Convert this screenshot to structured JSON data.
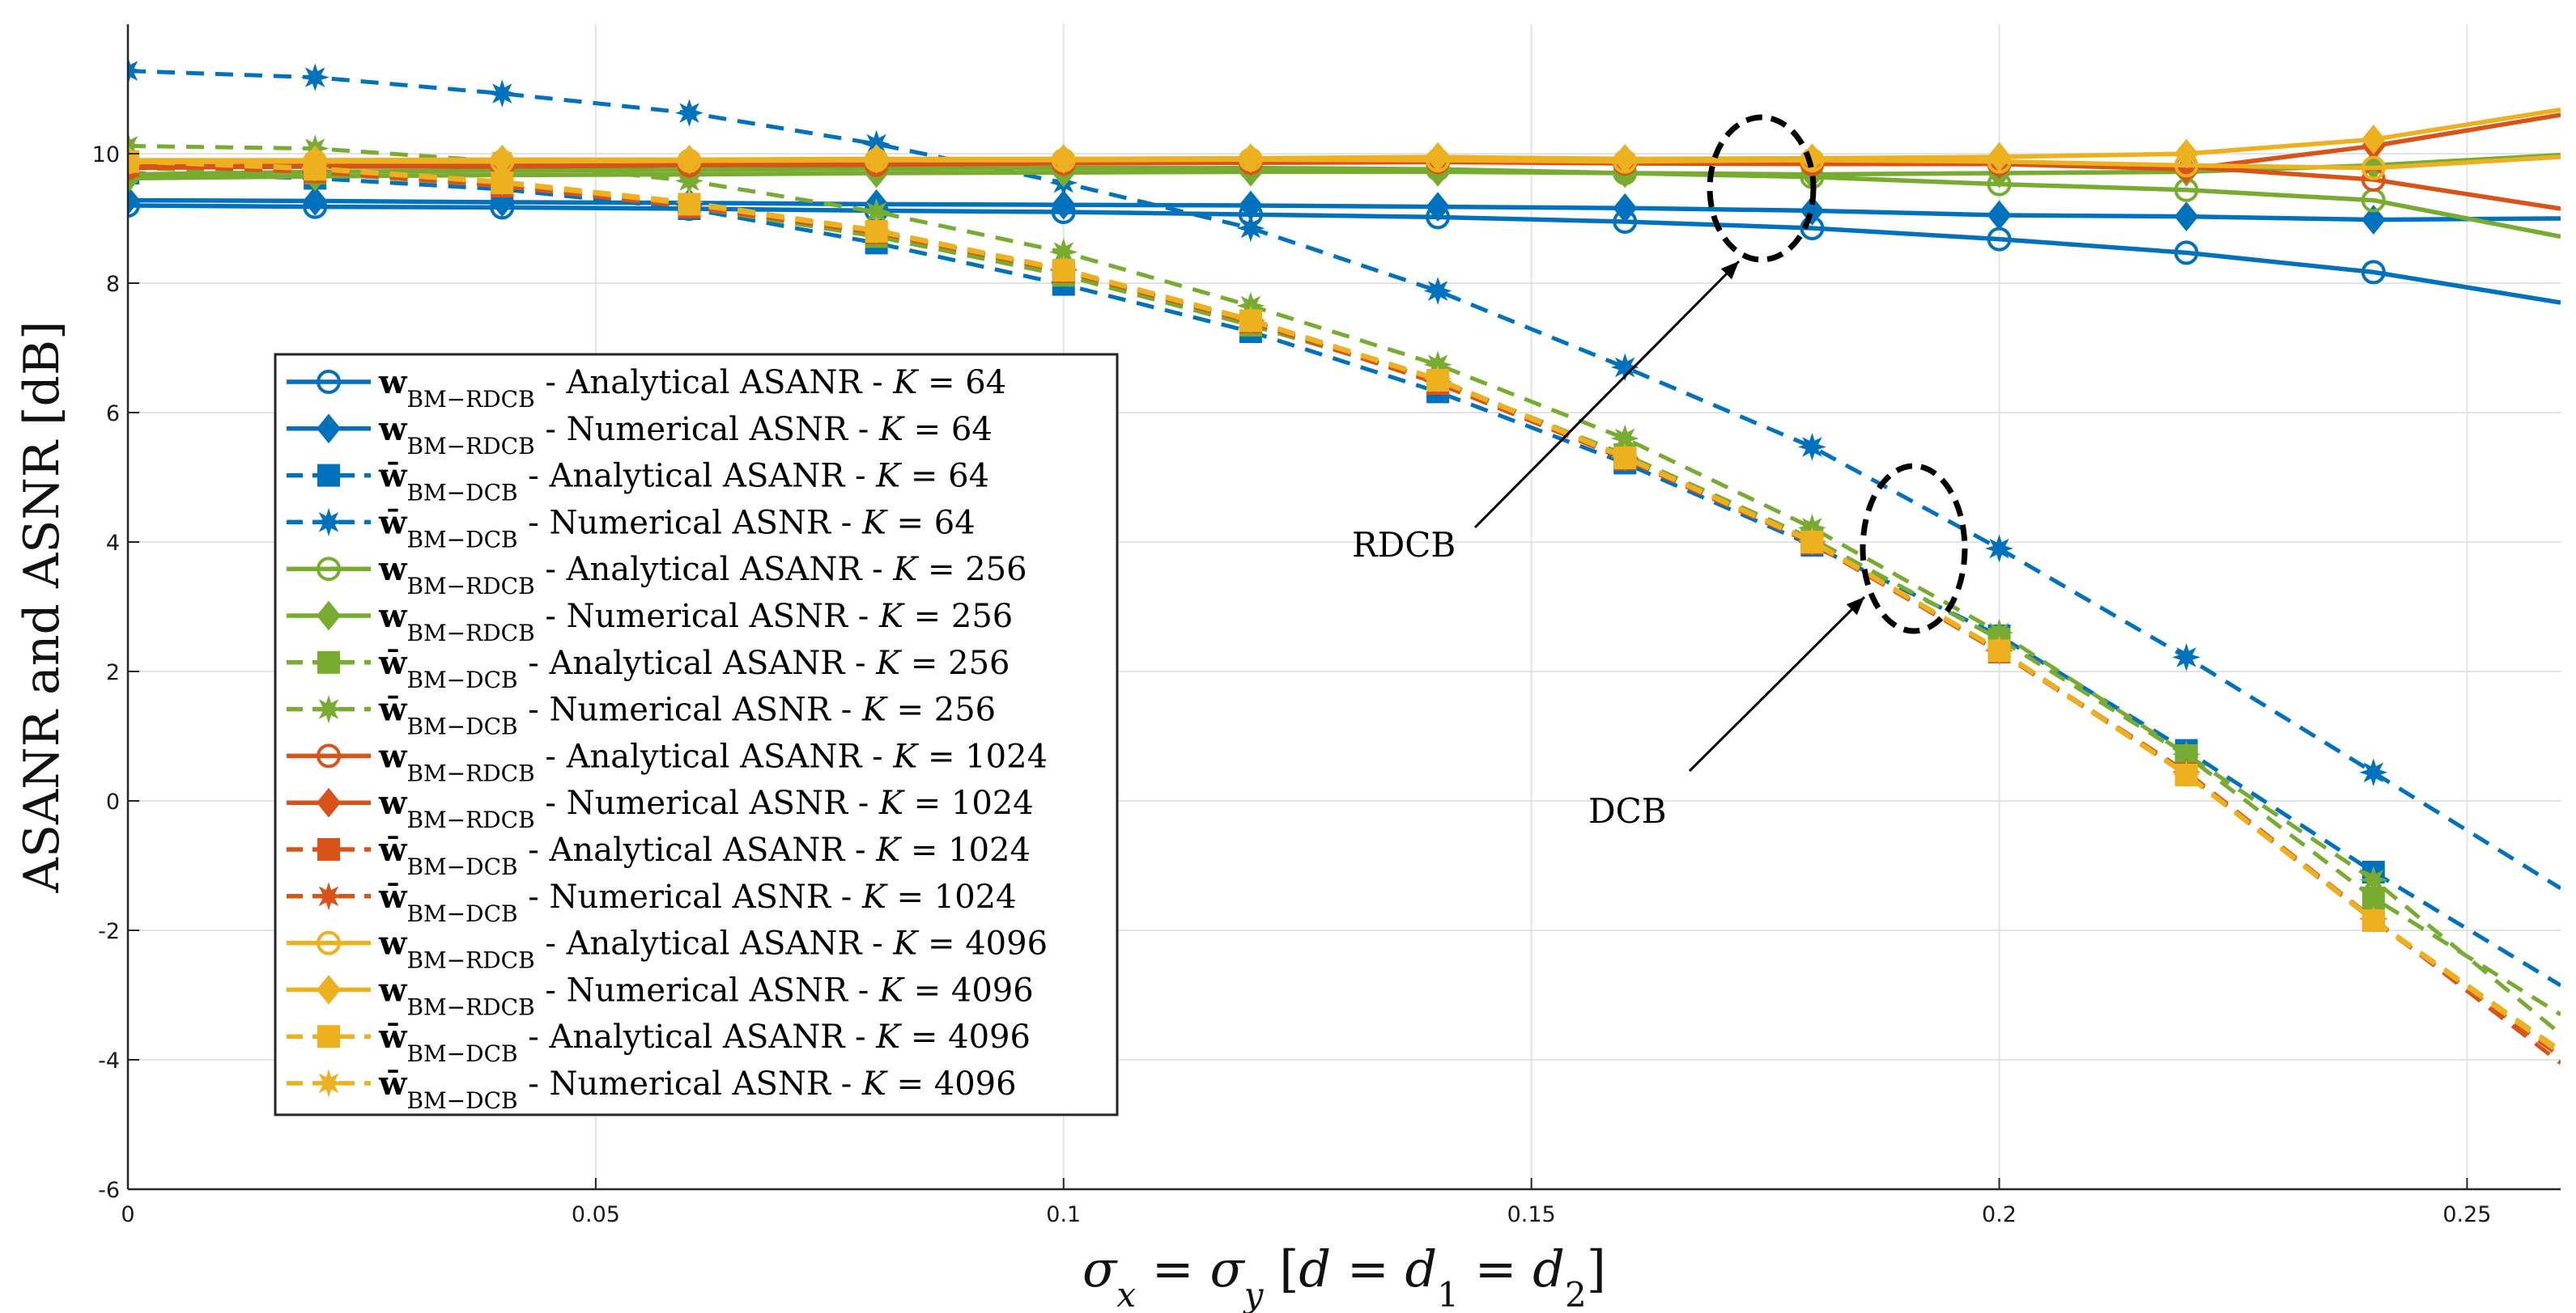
{
  "chart_data": {
    "type": "line",
    "xlabel": "σx = σy [d = d1 = d2]",
    "ylabel": "ASANR and ASNR [dB]",
    "xlim": [
      0,
      0.26
    ],
    "ylim": [
      -6,
      12
    ],
    "xticks": [
      0,
      0.05,
      0.1,
      0.15,
      0.2,
      0.25
    ],
    "xtick_labels": [
      "0",
      "0.05",
      "0.1",
      "0.15",
      "0.2",
      "0.25"
    ],
    "yticks": [
      -6,
      -4,
      -2,
      0,
      2,
      4,
      6,
      8,
      10
    ],
    "ytick_labels": [
      "-6",
      "-4",
      "-2",
      "0",
      "2",
      "4",
      "6",
      "8",
      "10"
    ],
    "grid": true,
    "legend_position": "middle-left",
    "x": [
      0,
      0.02,
      0.04,
      0.06,
      0.08,
      0.1,
      0.12,
      0.14,
      0.16,
      0.18,
      0.2,
      0.22,
      0.24,
      0.26
    ],
    "series": [
      {
        "name": "wBM−RDCB - Analytical ASANR - K = 64",
        "beam": "w",
        "sub": "BM−RDCB",
        "metric": "Analytical ASANR",
        "K": "64",
        "color": "#0072BD",
        "style": "solid",
        "marker": "circle",
        "values": [
          9.2,
          9.18,
          9.17,
          9.15,
          9.12,
          9.1,
          9.06,
          9.02,
          8.95,
          8.85,
          8.68,
          8.47,
          8.17,
          7.7
        ]
      },
      {
        "name": "wBM−RDCB - Numerical ASNR - K = 64",
        "beam": "w",
        "sub": "BM−RDCB",
        "metric": "Numerical ASNR",
        "K": "64",
        "color": "#0072BD",
        "style": "solid",
        "marker": "diamond",
        "values": [
          9.28,
          9.27,
          9.25,
          9.24,
          9.22,
          9.21,
          9.2,
          9.18,
          9.16,
          9.12,
          9.05,
          9.03,
          8.98,
          9.0
        ]
      },
      {
        "name": "w̄BM−DCB - Analytical ASANR - K = 64",
        "beam": "w̄",
        "sub": "BM−DCB",
        "metric": "Analytical ASANR",
        "K": "64",
        "color": "#0072BD",
        "style": "dashed",
        "marker": "square",
        "values": [
          9.7,
          9.62,
          9.45,
          9.15,
          8.62,
          7.98,
          7.25,
          6.32,
          5.22,
          3.95,
          2.55,
          0.78,
          -1.1,
          -2.85
        ]
      },
      {
        "name": "w̄BM−DCB - Numerical ASNR - K = 64",
        "beam": "w̄",
        "sub": "BM−DCB",
        "metric": "Numerical ASNR",
        "K": "64",
        "color": "#0072BD",
        "style": "dashed",
        "marker": "star",
        "values": [
          11.28,
          11.18,
          10.93,
          10.63,
          10.15,
          9.55,
          8.85,
          7.88,
          6.7,
          5.47,
          3.9,
          2.22,
          0.44,
          -1.35
        ]
      },
      {
        "name": "wBM−RDCB - Analytical ASANR - K = 256",
        "beam": "w",
        "sub": "BM−RDCB",
        "metric": "Analytical ASANR",
        "K": "256",
        "color": "#77AC30",
        "style": "solid",
        "marker": "circle",
        "values": [
          9.68,
          9.72,
          9.74,
          9.75,
          9.77,
          9.78,
          9.78,
          9.76,
          9.7,
          9.64,
          9.53,
          9.44,
          9.28,
          8.72
        ]
      },
      {
        "name": "wBM−RDCB - Numerical ASNR - K = 256",
        "beam": "w",
        "sub": "BM−RDCB",
        "metric": "Numerical ASNR",
        "K": "256",
        "color": "#77AC30",
        "style": "solid",
        "marker": "diamond",
        "values": [
          9.62,
          9.65,
          9.67,
          9.68,
          9.7,
          9.71,
          9.72,
          9.72,
          9.7,
          9.68,
          9.7,
          9.72,
          9.82,
          9.98
        ]
      },
      {
        "name": "w̄BM−DCB - Analytical ASANR - K = 256",
        "beam": "w̄",
        "sub": "BM−DCB",
        "metric": "Analytical ASANR",
        "K": "256",
        "color": "#77AC30",
        "style": "dashed",
        "marker": "square",
        "values": [
          9.78,
          9.7,
          9.5,
          9.18,
          8.72,
          8.12,
          7.35,
          6.5,
          5.35,
          4.05,
          2.5,
          0.7,
          -1.5,
          -3.3
        ]
      },
      {
        "name": "w̄BM−DCB - Numerical ASNR - K = 256",
        "beam": "w̄",
        "sub": "BM−DCB",
        "metric": "Numerical ASNR",
        "K": "256",
        "color": "#77AC30",
        "style": "dashed",
        "marker": "star",
        "values": [
          10.12,
          10.08,
          9.88,
          9.58,
          9.1,
          8.48,
          7.65,
          6.74,
          5.6,
          4.22,
          2.6,
          0.72,
          -1.22,
          -3.6
        ]
      },
      {
        "name": "wBM−RDCB - Analytical ASANR - K = 1024",
        "beam": "w",
        "sub": "BM−RDCB",
        "metric": "Analytical ASANR",
        "K": "1024",
        "color": "#D95319",
        "style": "solid",
        "marker": "circle",
        "values": [
          9.78,
          9.8,
          9.8,
          9.82,
          9.83,
          9.85,
          9.86,
          9.87,
          9.85,
          9.84,
          9.84,
          9.8,
          9.6,
          9.15
        ]
      },
      {
        "name": "wBM−RDCB - Numerical ASNR - K = 1024",
        "beam": "w",
        "sub": "BM−RDCB",
        "metric": "Numerical ASNR",
        "K": "1024",
        "color": "#D95319",
        "style": "solid",
        "marker": "diamond",
        "values": [
          9.82,
          9.84,
          9.84,
          9.85,
          9.86,
          9.87,
          9.88,
          9.9,
          9.88,
          9.86,
          9.84,
          9.76,
          10.12,
          10.6
        ]
      },
      {
        "name": "w̄BM−DCB - Analytical ASANR - K = 1024",
        "beam": "w̄",
        "sub": "BM−DCB",
        "metric": "Analytical ASANR",
        "K": "1024",
        "color": "#D95319",
        "style": "dashed",
        "marker": "square",
        "values": [
          9.82,
          9.72,
          9.5,
          9.18,
          8.78,
          8.18,
          7.4,
          6.45,
          5.28,
          3.98,
          2.3,
          0.42,
          -1.85,
          -3.95
        ]
      },
      {
        "name": "w̄BM−DCB - Numerical ASNR - K = 1024",
        "beam": "w̄",
        "sub": "BM−DCB",
        "metric": "Numerical ASNR",
        "K": "1024",
        "color": "#D95319",
        "style": "dashed",
        "marker": "star",
        "values": [
          9.85,
          9.74,
          9.52,
          9.2,
          8.8,
          8.2,
          7.42,
          6.48,
          5.3,
          4.0,
          2.32,
          0.45,
          -1.82,
          -4.05
        ]
      },
      {
        "name": "wBM−RDCB - Analytical ASANR - K = 4096",
        "beam": "w",
        "sub": "BM−RDCB",
        "metric": "Analytical ASANR",
        "K": "4096",
        "color": "#EDB120",
        "style": "solid",
        "marker": "circle",
        "values": [
          9.87,
          9.88,
          9.88,
          9.89,
          9.9,
          9.9,
          9.91,
          9.9,
          9.88,
          9.9,
          9.88,
          9.82,
          9.78,
          9.95
        ]
      },
      {
        "name": "wBM−RDCB - Numerical ASNR - K = 4096",
        "beam": "w",
        "sub": "BM−RDCB",
        "metric": "Numerical ASNR",
        "K": "4096",
        "color": "#EDB120",
        "style": "solid",
        "marker": "diamond",
        "values": [
          9.9,
          9.9,
          9.91,
          9.91,
          9.92,
          9.92,
          9.93,
          9.95,
          9.92,
          9.93,
          9.95,
          10.0,
          10.22,
          10.68
        ]
      },
      {
        "name": "w̄BM−DCB - Analytical ASANR - K = 4096",
        "beam": "w̄",
        "sub": "BM−DCB",
        "metric": "Analytical ASANR",
        "K": "4096",
        "color": "#EDB120",
        "style": "dashed",
        "marker": "square",
        "values": [
          9.88,
          9.76,
          9.55,
          9.22,
          8.8,
          8.2,
          7.42,
          6.5,
          5.3,
          4.0,
          2.32,
          0.4,
          -1.85,
          -3.9
        ]
      },
      {
        "name": "w̄BM−DCB - Numerical ASNR - K = 4096",
        "beam": "w̄",
        "sub": "BM−DCB",
        "metric": "Numerical ASNR",
        "K": "4096",
        "color": "#EDB120",
        "style": "dashed",
        "marker": "star",
        "values": [
          9.9,
          9.78,
          9.57,
          9.25,
          8.82,
          8.22,
          7.44,
          6.52,
          5.32,
          4.02,
          2.34,
          0.42,
          -1.83,
          -3.85
        ]
      }
    ],
    "annotations": [
      {
        "text": "RDCB",
        "target": "RDCB curves"
      },
      {
        "text": "DCB",
        "target": "DCB curves"
      }
    ]
  }
}
